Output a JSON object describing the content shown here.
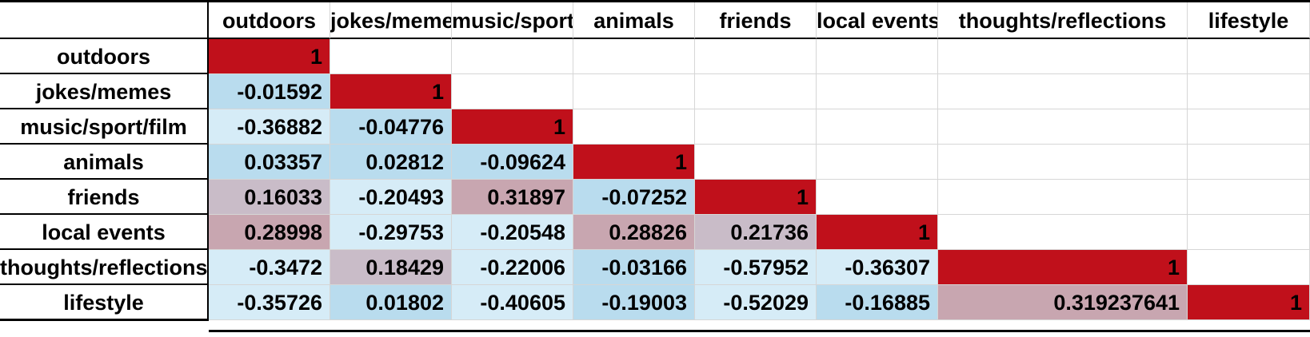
{
  "table": {
    "column_headers": [
      "outdoors",
      "jokes/memes",
      "music/sport/film",
      "animals",
      "friends",
      "local events",
      "thoughts/reflections",
      "lifestyle"
    ],
    "rows": [
      {
        "label": "outdoors",
        "cells": [
          "1",
          "",
          "",
          "",
          "",
          "",
          "",
          ""
        ]
      },
      {
        "label": "jokes/memes",
        "cells": [
          "-0.01592",
          "1",
          "",
          "",
          "",
          "",
          "",
          ""
        ]
      },
      {
        "label": "music/sport/film",
        "cells": [
          "-0.36882",
          "-0.04776",
          "1",
          "",
          "",
          "",
          "",
          ""
        ]
      },
      {
        "label": "animals",
        "cells": [
          "0.03357",
          "0.02812",
          "-0.09624",
          "1",
          "",
          "",
          "",
          ""
        ]
      },
      {
        "label": "friends",
        "cells": [
          "0.16033",
          "-0.20493",
          "0.31897",
          "-0.07252",
          "1",
          "",
          "",
          ""
        ]
      },
      {
        "label": "local events",
        "cells": [
          "0.28998",
          "-0.29753",
          "-0.20548",
          "0.28826",
          "0.21736",
          "1",
          "",
          ""
        ]
      },
      {
        "label": "thoughts/reflections",
        "cells": [
          "-0.3472",
          "0.18429",
          "-0.22006",
          "-0.03166",
          "-0.57952",
          "-0.36307",
          "1",
          ""
        ]
      },
      {
        "label": "lifestyle",
        "cells": [
          "-0.35726",
          "0.01802",
          "-0.40605",
          "-0.19003",
          "-0.52029",
          "-0.16885",
          "0.319237641",
          "1"
        ]
      }
    ]
  },
  "colors": {
    "diagonal": "#c0101b",
    "strong_negative": "#d6ecf7",
    "weak": "#b9dcee",
    "mid_positive": "#c9bcc8",
    "strong_positive": "#c8a6b0"
  }
}
